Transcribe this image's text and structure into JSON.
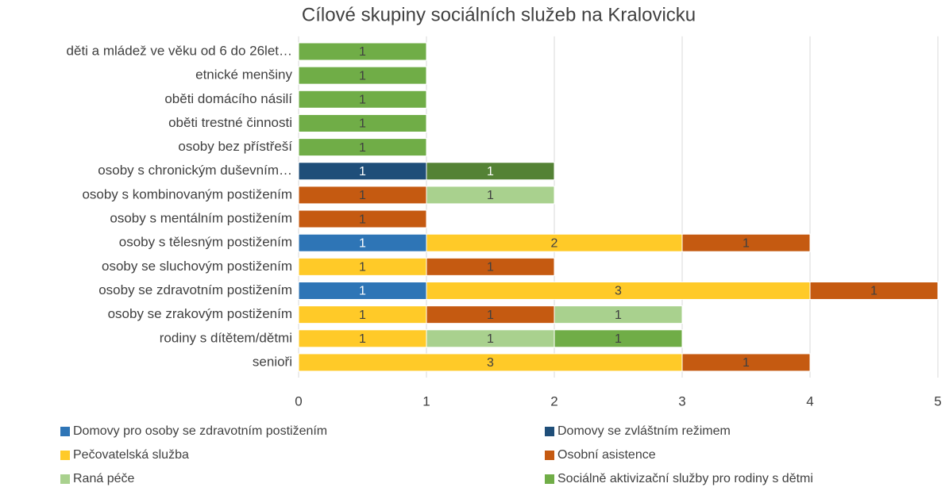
{
  "chart_data": {
    "type": "stacked-bar-horizontal",
    "title": "Cílové skupiny sociálních služeb na Kralovicku",
    "categories": [
      "děti a mládež ve věku od 6 do 26let…",
      "etnické menšiny",
      "oběti domácího násilí",
      "oběti trestné činnosti",
      "osoby bez přístřeší",
      "osoby s chronickým duševním…",
      "osoby s kombinovaným postižením",
      "osoby s mentálním postižením",
      "osoby s tělesným postižením",
      "osoby se sluchovým postižením",
      "osoby se zdravotním postižením",
      "osoby se zrakovým postižením",
      "rodiny s dítětem/dětmi",
      "senioři"
    ],
    "series": [
      {
        "name": "Domovy pro osoby se zdravotním postižením",
        "color": "#2e75b6",
        "values": [
          null,
          null,
          null,
          null,
          null,
          null,
          null,
          null,
          1,
          null,
          1,
          null,
          null,
          null
        ]
      },
      {
        "name": "Domovy se zvláštním režimem",
        "color": "#1f4e79",
        "values": [
          null,
          null,
          null,
          null,
          null,
          1,
          null,
          null,
          null,
          null,
          null,
          null,
          null,
          null
        ]
      },
      {
        "name": "Pečovatelská služba",
        "color": "#ffca28",
        "values": [
          null,
          null,
          null,
          null,
          null,
          null,
          null,
          null,
          2,
          1,
          3,
          1,
          1,
          3
        ]
      },
      {
        "name": "Osobní asistence",
        "color": "#c55a11",
        "values": [
          null,
          null,
          null,
          null,
          null,
          null,
          1,
          1,
          1,
          1,
          1,
          1,
          null,
          1
        ]
      },
      {
        "name": "Raná péče",
        "color": "#a9d18e",
        "values": [
          null,
          null,
          null,
          null,
          null,
          null,
          1,
          null,
          null,
          null,
          null,
          1,
          1,
          null
        ]
      },
      {
        "name": "Sociálně aktivizační služby pro rodiny s dětmi",
        "color": "#70ad47",
        "values": [
          1,
          1,
          1,
          1,
          1,
          null,
          null,
          null,
          null,
          null,
          null,
          null,
          1,
          null
        ]
      },
      {
        "name": null,
        "color": "#548235",
        "values": [
          null,
          null,
          null,
          null,
          null,
          1,
          null,
          null,
          null,
          null,
          null,
          null,
          null,
          null
        ]
      }
    ],
    "xlim": [
      0,
      5
    ],
    "xticks": [
      0,
      1,
      2,
      3,
      4,
      5
    ],
    "grid": true,
    "legend": "bottom"
  }
}
